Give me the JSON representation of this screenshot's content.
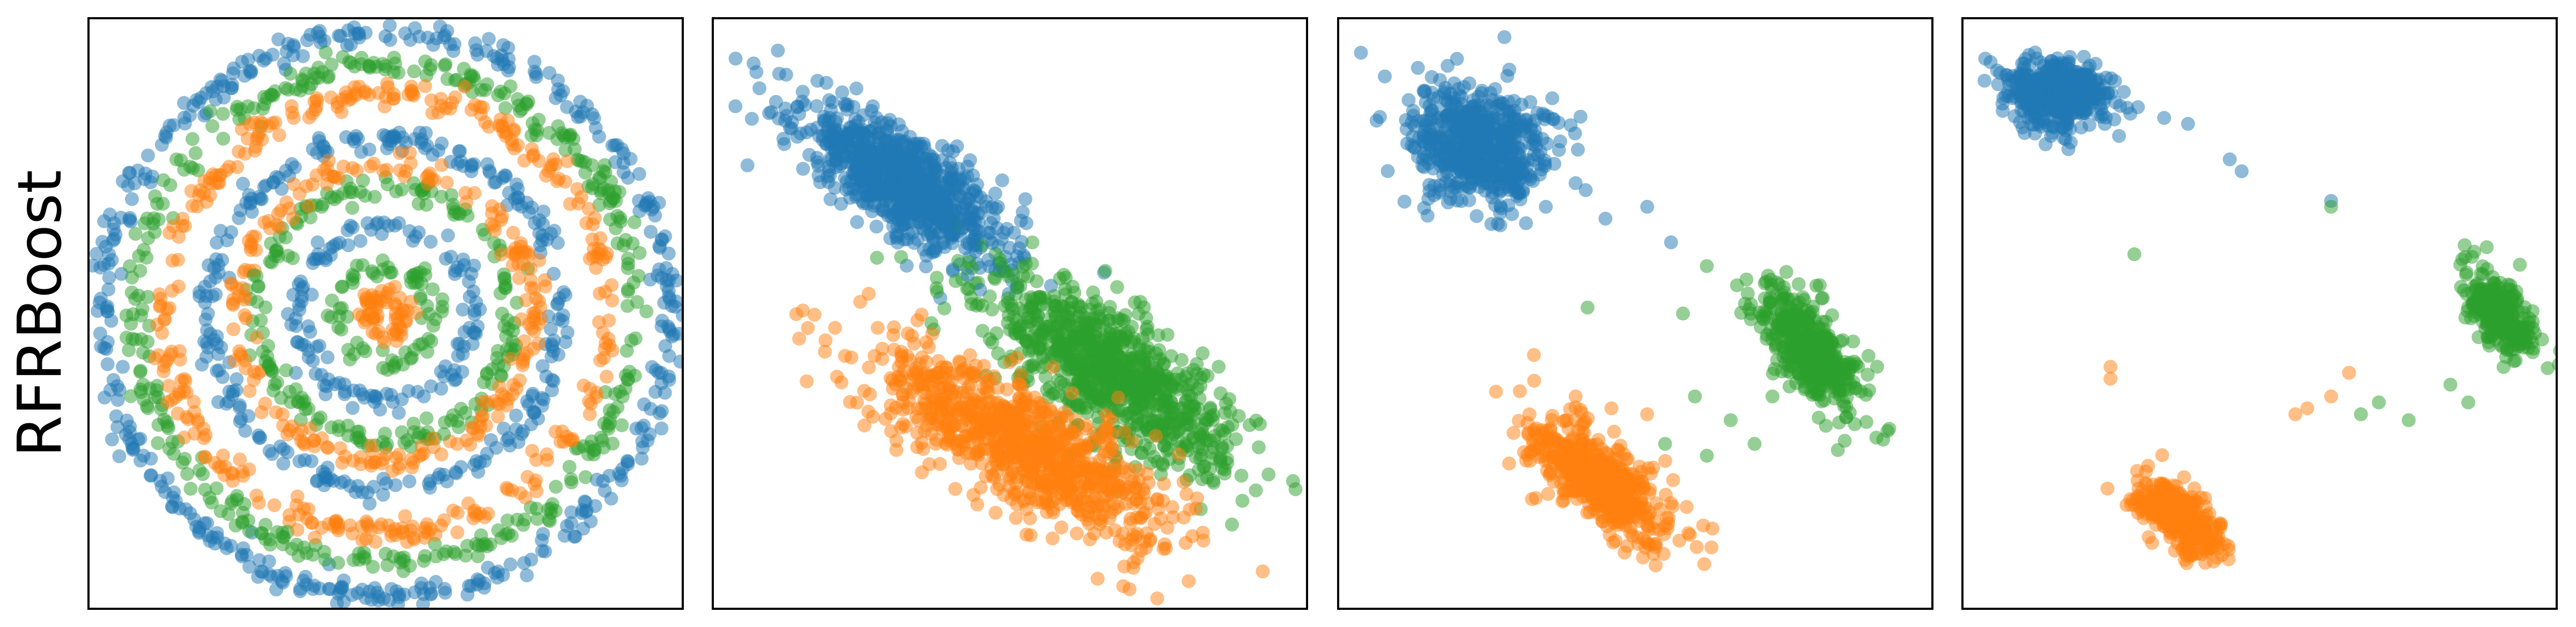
{
  "row_label": "RFRBoost",
  "colors": {
    "blue": "#1f77b4",
    "orange": "#ff7f0e",
    "green": "#2ca02c"
  },
  "chart_data": [
    {
      "type": "scatter",
      "panel": 1,
      "axes_visible": false,
      "grid": false,
      "xlim": [
        -1.05,
        1.05
      ],
      "ylim": [
        -1.05,
        1.05
      ],
      "generator": "concentric_rings",
      "series": [
        {
          "color": "blue",
          "rings": [
            1.0,
            0.62,
            0.31
          ]
        },
        {
          "color": "green",
          "rings": [
            0.88,
            0.45,
            0.17
          ]
        },
        {
          "color": "orange",
          "rings": [
            0.78,
            0.52,
            0.07
          ]
        }
      ]
    },
    {
      "type": "scatter",
      "panel": 2,
      "axes_visible": false,
      "grid": false,
      "xlim": [
        0,
        1
      ],
      "ylim": [
        0,
        1
      ],
      "generator": "clusters",
      "series": [
        {
          "color": "blue",
          "cx": 0.32,
          "cy": 0.72,
          "sx": 0.1,
          "sy": 0.035,
          "angle": -36,
          "n": 900,
          "outliers": [
            [
              0.04,
              0.93
            ],
            [
              0.08,
              0.88
            ],
            [
              0.1,
              0.84
            ],
            [
              0.06,
              0.75
            ],
            [
              0.48,
              0.68
            ],
            [
              0.45,
              0.54
            ]
          ]
        },
        {
          "color": "green",
          "cx": 0.67,
          "cy": 0.4,
          "sx": 0.12,
          "sy": 0.045,
          "angle": -35,
          "n": 900,
          "outliers": [
            [
              0.52,
              0.48
            ],
            [
              0.55,
              0.44
            ],
            [
              0.82,
              0.17
            ],
            [
              0.86,
              0.23
            ]
          ]
        },
        {
          "color": "orange",
          "cx": 0.52,
          "cy": 0.28,
          "sx": 0.14,
          "sy": 0.045,
          "angle": -30,
          "n": 900,
          "outliers": [
            [
              0.38,
              0.42
            ],
            [
              0.72,
              0.1
            ]
          ]
        }
      ]
    },
    {
      "type": "scatter",
      "panel": 3,
      "axes_visible": false,
      "grid": false,
      "xlim": [
        0,
        1
      ],
      "ylim": [
        0,
        1
      ],
      "generator": "clusters",
      "series": [
        {
          "color": "blue",
          "cx": 0.24,
          "cy": 0.78,
          "sx": 0.06,
          "sy": 0.05,
          "angle": -20,
          "n": 600,
          "outliers": [
            [
              0.04,
              0.94
            ],
            [
              0.08,
              0.9
            ],
            [
              0.12,
              0.86
            ],
            [
              0.35,
              0.68
            ],
            [
              0.4,
              0.72
            ],
            [
              0.45,
              0.66
            ],
            [
              0.52,
              0.68
            ],
            [
              0.56,
              0.62
            ]
          ]
        },
        {
          "color": "green",
          "cx": 0.79,
          "cy": 0.44,
          "sx": 0.06,
          "sy": 0.025,
          "angle": -50,
          "n": 450,
          "outliers": [
            [
              0.62,
              0.58
            ],
            [
              0.58,
              0.5
            ],
            [
              0.42,
              0.51
            ],
            [
              0.6,
              0.36
            ],
            [
              0.66,
              0.32
            ],
            [
              0.7,
              0.28
            ],
            [
              0.55,
              0.28
            ],
            [
              0.62,
              0.26
            ],
            [
              0.73,
              0.36
            ]
          ]
        },
        {
          "color": "orange",
          "cx": 0.44,
          "cy": 0.22,
          "sx": 0.07,
          "sy": 0.03,
          "angle": -40,
          "n": 500,
          "outliers": [
            [
              0.33,
              0.43
            ],
            [
              0.36,
              0.32
            ],
            [
              0.4,
              0.36
            ],
            [
              0.46,
              0.34
            ],
            [
              0.52,
              0.33
            ],
            [
              0.53,
              0.24
            ],
            [
              0.56,
              0.18
            ]
          ]
        }
      ]
    },
    {
      "type": "scatter",
      "panel": 4,
      "axes_visible": false,
      "grid": false,
      "xlim": [
        0,
        1
      ],
      "ylim": [
        0,
        1
      ],
      "generator": "clusters",
      "series": [
        {
          "color": "blue",
          "cx": 0.16,
          "cy": 0.87,
          "sx": 0.045,
          "sy": 0.03,
          "angle": -10,
          "n": 420,
          "outliers": [
            [
              0.04,
              0.93
            ],
            [
              0.06,
              0.91
            ],
            [
              0.34,
              0.83
            ],
            [
              0.38,
              0.82
            ],
            [
              0.45,
              0.76
            ],
            [
              0.47,
              0.74
            ],
            [
              0.62,
              0.69
            ]
          ]
        },
        {
          "color": "green",
          "cx": 0.9,
          "cy": 0.5,
          "sx": 0.04,
          "sy": 0.02,
          "angle": -55,
          "n": 300,
          "outliers": [
            [
              0.29,
              0.6
            ],
            [
              0.62,
              0.68
            ],
            [
              0.7,
              0.35
            ],
            [
              0.67,
              0.33
            ],
            [
              0.82,
              0.38
            ],
            [
              0.85,
              0.35
            ],
            [
              0.75,
              0.32
            ]
          ]
        },
        {
          "color": "orange",
          "cx": 0.37,
          "cy": 0.15,
          "sx": 0.045,
          "sy": 0.02,
          "angle": -40,
          "n": 330,
          "outliers": [
            [
              0.25,
              0.41
            ],
            [
              0.25,
              0.39
            ],
            [
              0.58,
              0.34
            ],
            [
              0.62,
              0.36
            ],
            [
              0.65,
              0.4
            ],
            [
              0.56,
              0.33
            ]
          ]
        }
      ]
    }
  ]
}
